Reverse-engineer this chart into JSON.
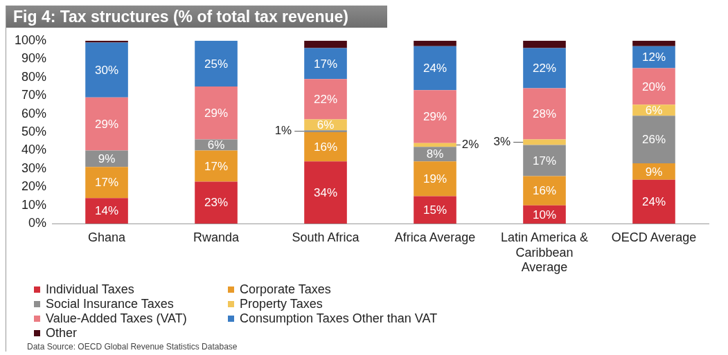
{
  "chart_data": {
    "type": "bar",
    "title": "Fig 4: Tax structures (% of total tax revenue)",
    "stacked": true,
    "categories": [
      "Ghana",
      "Rwanda",
      "South Africa",
      "Africa Average",
      "Latin America & Caribbean Average",
      "OECD Average"
    ],
    "ylim": [
      0,
      100
    ],
    "yticks": [
      {
        "value": 0,
        "label": "0%"
      },
      {
        "value": 10,
        "label": "10%"
      },
      {
        "value": 20,
        "label": "20%"
      },
      {
        "value": 30,
        "label": "30%"
      },
      {
        "value": 40,
        "label": "40%"
      },
      {
        "value": 50,
        "label": "50%"
      },
      {
        "value": 60,
        "label": "60%"
      },
      {
        "value": 70,
        "label": "70%"
      },
      {
        "value": 80,
        "label": "80%"
      },
      {
        "value": 90,
        "label": "90%"
      },
      {
        "value": 100,
        "label": "100%"
      }
    ],
    "grid": false,
    "legend": "bottom",
    "series": [
      {
        "name": "Individual Taxes",
        "color": "#d42e3a",
        "values": [
          14,
          23,
          34,
          15,
          10,
          24
        ],
        "value_labels": [
          "14%",
          "23%",
          "34%",
          "15%",
          "10%",
          "24%"
        ]
      },
      {
        "name": "Corporate Taxes",
        "color": "#e89a2a",
        "values": [
          17,
          17,
          16,
          19,
          16,
          9
        ],
        "value_labels": [
          "17%",
          "17%",
          "16%",
          "19%",
          "16%",
          "9%"
        ]
      },
      {
        "name": "Social Insurance Taxes",
        "color": "#8f8f8f",
        "values": [
          9,
          6,
          1,
          8,
          17,
          26
        ],
        "value_labels": [
          "9%",
          "6%",
          "1%",
          "8%",
          "17%",
          "26%"
        ]
      },
      {
        "name": "Property Taxes",
        "color": "#f2c65a",
        "values": [
          null,
          null,
          6,
          2,
          3,
          6
        ],
        "value_labels": [
          null,
          null,
          "6%",
          "2%",
          "3%",
          "6%"
        ]
      },
      {
        "name": "Value-Added Taxes (VAT)",
        "color": "#eb7b82",
        "values": [
          29,
          29,
          22,
          29,
          28,
          20
        ],
        "value_labels": [
          "29%",
          "29%",
          "22%",
          "29%",
          "28%",
          "20%"
        ]
      },
      {
        "name": "Consumption Taxes Other than VAT",
        "color": "#3a7cc4",
        "values": [
          30,
          25,
          17,
          24,
          22,
          12
        ],
        "value_labels": [
          "30%",
          "25%",
          "17%",
          "24%",
          "22%",
          "12%"
        ]
      },
      {
        "name": "Other",
        "color": "#4a0a14",
        "values": [
          1,
          null,
          4,
          3,
          4,
          3
        ],
        "value_labels": [
          null,
          null,
          null,
          null,
          null,
          null
        ]
      }
    ],
    "annotations": [
      "Data Source: OECD Global Revenue Statistics Database"
    ]
  }
}
